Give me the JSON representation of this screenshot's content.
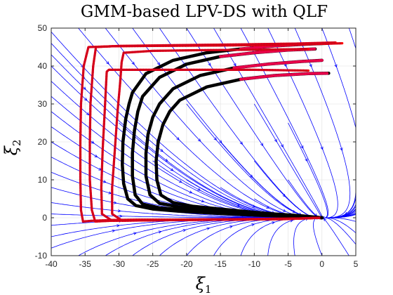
{
  "chart_data": {
    "type": "line",
    "title": "GMM-based LPV-DS with QLF",
    "xlabel": {
      "symbol": "ξ",
      "sub": "1"
    },
    "ylabel": {
      "symbol": "ξ",
      "sub": "2"
    },
    "xlim": [
      -40,
      5
    ],
    "ylim": [
      -10,
      50
    ],
    "xticks": [
      -40,
      -35,
      -30,
      -25,
      -20,
      -15,
      -10,
      -5,
      0,
      5
    ],
    "yticks": [
      -10,
      0,
      10,
      20,
      30,
      40,
      50
    ],
    "grid": true,
    "legend": "none",
    "attractor": [
      0,
      0
    ],
    "colors": {
      "streamlines": "#0000ff",
      "reproductions": "#ff0000",
      "demonstrations": "#000000",
      "demo_edge": "#e8004a"
    },
    "streamline_starts": [
      [
        -40,
        49
      ],
      [
        -40,
        46
      ],
      [
        -40,
        43
      ],
      [
        -40,
        40
      ],
      [
        -40,
        36
      ],
      [
        -40,
        32
      ],
      [
        -40,
        28
      ],
      [
        -40,
        24
      ],
      [
        -40,
        20
      ],
      [
        -40,
        16
      ],
      [
        -40,
        12
      ],
      [
        -40,
        8
      ],
      [
        -40,
        4
      ],
      [
        -40,
        1
      ],
      [
        -40,
        -2
      ],
      [
        -40,
        -5
      ],
      [
        -40,
        -8
      ],
      [
        -36,
        50
      ],
      [
        -32,
        50
      ],
      [
        -28,
        50
      ],
      [
        -24,
        50
      ],
      [
        -20,
        50
      ],
      [
        -16,
        50
      ],
      [
        -12,
        50
      ],
      [
        -8,
        50
      ],
      [
        -4,
        50
      ],
      [
        0,
        50
      ],
      [
        4,
        50
      ],
      [
        5,
        46
      ],
      [
        5,
        40
      ],
      [
        5,
        34
      ],
      [
        5,
        28
      ],
      [
        5,
        22
      ],
      [
        5,
        16
      ],
      [
        5,
        11
      ],
      [
        5,
        7
      ],
      [
        5,
        3
      ],
      [
        5,
        -1
      ],
      [
        5,
        -4
      ],
      [
        5,
        -7
      ],
      [
        -36,
        -10
      ],
      [
        -32,
        -10
      ],
      [
        -28,
        -10
      ],
      [
        -24,
        -10
      ],
      [
        -20,
        -10
      ],
      [
        -16,
        -10
      ],
      [
        -12,
        -10
      ],
      [
        -8,
        -10
      ],
      [
        -4,
        -10
      ],
      [
        0,
        -10
      ],
      [
        4,
        -10
      ],
      [
        -30,
        25
      ],
      [
        -25,
        15
      ],
      [
        -20,
        10
      ],
      [
        -15,
        8
      ],
      [
        -10,
        5
      ],
      [
        -15,
        20
      ],
      [
        -10,
        15
      ],
      [
        -5,
        10
      ],
      [
        -20,
        30
      ],
      [
        -10,
        30
      ],
      [
        -5,
        25
      ]
    ],
    "reproductions": [
      {
        "x": [
          0,
          -3,
          -8,
          -15,
          -22,
          -27,
          -31,
          -34,
          -35.3,
          -35.6,
          -35.7,
          -35.7,
          -35.6,
          -35.2,
          -34.5,
          -31,
          -25,
          -15,
          -5,
          3
        ],
        "y": [
          0,
          -0.2,
          -0.3,
          -0.4,
          -0.5,
          -0.5,
          -0.6,
          -0.8,
          -1,
          2,
          10,
          20,
          30,
          40,
          45,
          45.2,
          45.3,
          45.4,
          45.6,
          46
        ]
      },
      {
        "x": [
          0,
          -5,
          -12,
          -20,
          -27,
          -31,
          -33.5,
          -34,
          -34.3,
          -34.3,
          -34.2,
          -33.8,
          -33.4,
          -30,
          -22,
          -12,
          -4,
          2
        ],
        "y": [
          0,
          -0.3,
          -0.5,
          -0.6,
          -0.7,
          -0.8,
          -1,
          2,
          10,
          20,
          30,
          40,
          45,
          45.3,
          45.5,
          45.7,
          45.9,
          46.2
        ]
      },
      {
        "x": [
          0,
          -6,
          -14,
          -22,
          -28,
          -31,
          -32.5,
          -32.6,
          -32.4,
          -32.1,
          -31.9,
          -31.8,
          -31.5,
          -27,
          -19,
          -10,
          -2
        ],
        "y": [
          0,
          -0.4,
          -0.5,
          -0.6,
          -0.7,
          -0.8,
          1,
          8,
          18,
          28,
          35,
          38.5,
          39,
          39,
          39,
          39,
          38.8
        ]
      },
      {
        "x": [
          0,
          -5,
          -12,
          -20,
          -26,
          -29.5,
          -31,
          -31,
          -30.6,
          -30.2,
          -29.8,
          -29.6,
          -29.3,
          -25,
          -17,
          -9,
          -2
        ],
        "y": [
          0,
          -0.3,
          -0.5,
          -0.6,
          -0.7,
          -0.8,
          1,
          8,
          18,
          28,
          36,
          41,
          43.5,
          44,
          44.2,
          44.3,
          44.5
        ]
      }
    ],
    "demonstrations": [
      {
        "x": [
          0,
          -4,
          -10,
          -16,
          -21,
          -25,
          -27.5,
          -28.7,
          -29.3,
          -29.5,
          -29.4,
          -29,
          -28.5,
          -28,
          -26,
          -22,
          -17,
          -12,
          -7,
          -2,
          1
        ],
        "y": [
          0,
          0.3,
          0.7,
          1.2,
          1.7,
          2.3,
          3.2,
          5,
          9,
          14,
          20,
          26,
          30,
          33,
          38,
          41.5,
          43.5,
          44.5,
          45.3,
          45.8,
          46
        ]
      },
      {
        "x": [
          0,
          -4,
          -9,
          -15,
          -20,
          -24,
          -26.5,
          -27.6,
          -28,
          -28,
          -27.7,
          -27.2,
          -26.5,
          -24,
          -20,
          -15,
          -10,
          -5,
          -1
        ],
        "y": [
          0,
          0.4,
          0.9,
          1.4,
          2,
          2.6,
          3.6,
          6,
          11,
          17,
          23,
          28,
          32,
          37,
          40.5,
          42.5,
          43.5,
          44.2,
          44.5
        ]
      },
      {
        "x": [
          0,
          -4,
          -8,
          -13,
          -17,
          -21,
          -24,
          -25.4,
          -26,
          -26,
          -25.7,
          -25,
          -24,
          -22,
          -18,
          -13,
          -8,
          -3,
          0
        ],
        "y": [
          0,
          0.5,
          1,
          1.6,
          2.1,
          2.8,
          3.8,
          6,
          11,
          17,
          22,
          26.5,
          30,
          34,
          37.5,
          39.5,
          40.5,
          41.2,
          41.5
        ]
      },
      {
        "x": [
          0,
          -3,
          -7,
          -11,
          -15,
          -19,
          -22,
          -23.8,
          -24.4,
          -24.5,
          -24.2,
          -23.5,
          -22.5,
          -21,
          -17,
          -12,
          -7,
          -2,
          1
        ],
        "y": [
          0,
          0.5,
          1,
          1.6,
          2.3,
          3,
          4,
          6,
          10,
          15,
          20,
          24.5,
          28,
          31,
          34.5,
          36.5,
          37.5,
          38,
          38.1
        ]
      }
    ]
  }
}
